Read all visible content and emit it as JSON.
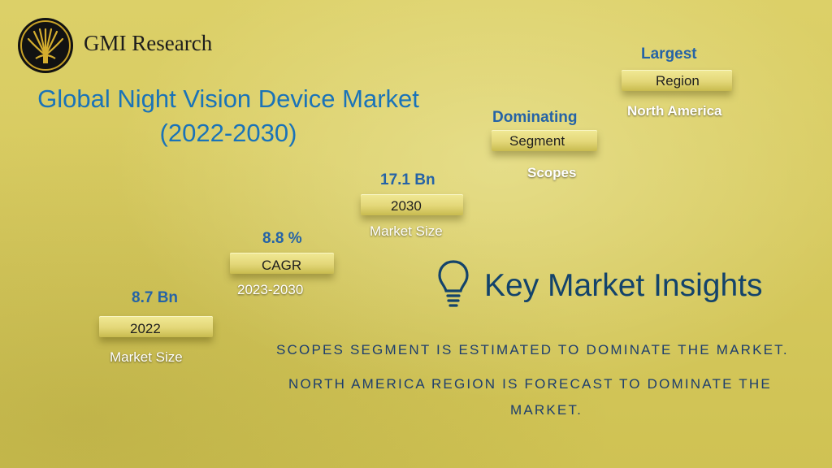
{
  "brand": {
    "name": "GMI Research"
  },
  "title": {
    "line1": "Global Night Vision Device Market",
    "line2": "(2022-2030)"
  },
  "steps": [
    {
      "top": "8.7 Bn",
      "label": "2022",
      "sub": "Market Size"
    },
    {
      "top": "8.8 %",
      "label": "CAGR",
      "sub": "2023-2030"
    },
    {
      "top": "17.1 Bn",
      "label": "2030",
      "sub": "Market Size"
    },
    {
      "top": "Dominating",
      "label": "Segment",
      "sub": "Scopes"
    },
    {
      "top": "Largest",
      "label": "Region",
      "sub": "North America"
    }
  ],
  "insights": {
    "heading": "Key Market Insights",
    "line1": "SCOPES SEGMENT IS ESTIMATED TO DOMINATE THE MARKET.",
    "line2": "NORTH AMERICA REGION IS FORECAST TO DOMINATE THE",
    "line3": "MARKET."
  },
  "colors": {
    "background": "#d8cb60",
    "title_blue": "#1a73b8",
    "label_blue": "#2563a6",
    "insight_navy": "#1c3d6e"
  },
  "icons": [
    "gmi-logo-icon",
    "lightbulb-icon"
  ]
}
